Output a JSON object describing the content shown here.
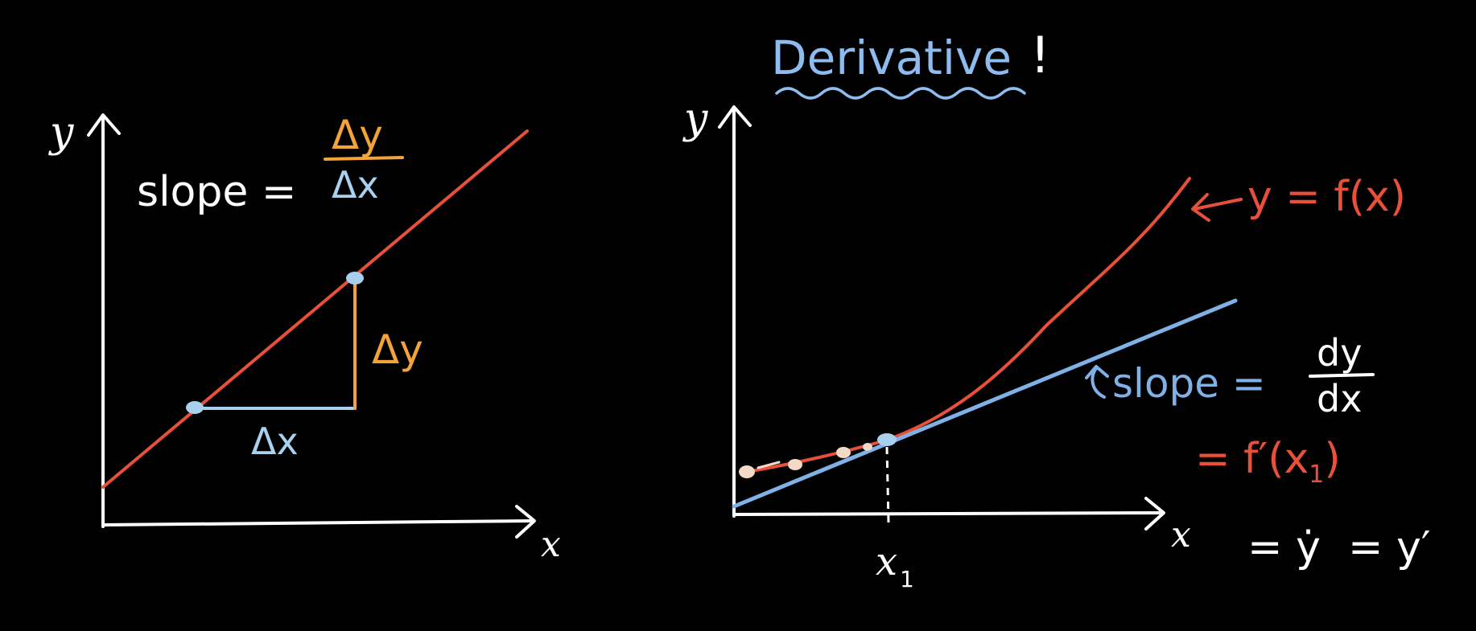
{
  "colors": {
    "background": "#000000",
    "axes": "#ffffff",
    "secant_line": "#e8503a",
    "delta_y": "#f2a33a",
    "delta_x": "#a9d1ee",
    "tangent_line": "#7fb0e6",
    "curve": "#e8503a",
    "title": "#8fbcee",
    "point": "#a9cfee",
    "point_small": "#f3d9c8"
  },
  "left_panel": {
    "y_axis_label": "y",
    "x_axis_label": "x",
    "slope_label": "slope =",
    "slope_numerator": "Δy",
    "slope_denominator": "Δx",
    "delta_y_label": "Δy",
    "delta_x_label": "Δx"
  },
  "right_panel": {
    "title": "Derivative",
    "title_mark": "!",
    "y_axis_label": "y",
    "x_axis_label": "x",
    "function_label": "y = f(x)",
    "slope_label": "slope =",
    "slope_numerator": "dy",
    "slope_denominator": "dx",
    "prime_eq_prefix": "= f′(x",
    "prime_eq_sub": "1",
    "prime_eq_suffix": ")",
    "point_label": "x",
    "point_label_sub": "1",
    "notation_dot": "= ẏ",
    "notation_prime": "= y′"
  }
}
